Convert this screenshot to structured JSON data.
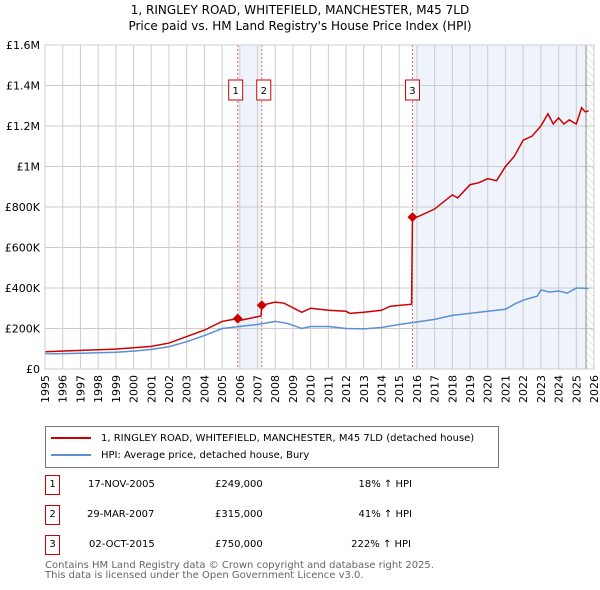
{
  "chart_data": {
    "type": "line",
    "title": "1, RINGLEY ROAD, WHITEFIELD, MANCHESTER, M45 7LD",
    "subtitle": "Price paid vs. HM Land Registry's House Price Index (HPI)",
    "xlim": [
      1995,
      2026
    ],
    "ylim": [
      0,
      1600000
    ],
    "x_ticks": [
      "1995",
      "1996",
      "1997",
      "1998",
      "1999",
      "2000",
      "2001",
      "2002",
      "2003",
      "2004",
      "2005",
      "2006",
      "2007",
      "2008",
      "2009",
      "2010",
      "2011",
      "2012",
      "2013",
      "2014",
      "2015",
      "2016",
      "2017",
      "2018",
      "2019",
      "2020",
      "2021",
      "2022",
      "2023",
      "2024",
      "2025",
      "2026"
    ],
    "y_ticks": [
      {
        "v": 0,
        "l": "£0"
      },
      {
        "v": 200000,
        "l": "£200K"
      },
      {
        "v": 400000,
        "l": "£400K"
      },
      {
        "v": 600000,
        "l": "£600K"
      },
      {
        "v": 800000,
        "l": "£800K"
      },
      {
        "v": 1000000,
        "l": "£1M"
      },
      {
        "v": 1200000,
        "l": "£1.2M"
      },
      {
        "v": 1400000,
        "l": "£1.4M"
      },
      {
        "v": 1600000,
        "l": "£1.6M"
      }
    ],
    "grid": true,
    "series": [
      {
        "name": "1, RINGLEY ROAD, WHITEFIELD, MANCHESTER, M45 7LD (detached house)",
        "color": "#cc0000",
        "x": [
          1995,
          1997,
          1999,
          2000,
          2001,
          2002,
          2003,
          2004,
          2005,
          2005.88,
          2006,
          2007.2,
          2007.24,
          2008,
          2008.5,
          2009.5,
          2010,
          2011,
          2012,
          2012.2,
          2013,
          2014,
          2014.5,
          2015.7,
          2015.75,
          2016,
          2017,
          2018,
          2018.3,
          2019,
          2019.5,
          2020,
          2020.5,
          2021,
          2021.5,
          2022,
          2022.5,
          2023,
          2023.4,
          2023.7,
          2024,
          2024.3,
          2024.6,
          2025,
          2025.3,
          2025.5,
          2025.7
        ],
        "y": [
          85000,
          92000,
          98000,
          105000,
          112000,
          128000,
          160000,
          192000,
          235000,
          249000,
          240000,
          262000,
          315000,
          330000,
          325000,
          280000,
          300000,
          290000,
          285000,
          275000,
          280000,
          290000,
          310000,
          320000,
          750000,
          750000,
          790000,
          860000,
          845000,
          910000,
          920000,
          940000,
          930000,
          1000000,
          1050000,
          1130000,
          1150000,
          1200000,
          1260000,
          1210000,
          1240000,
          1210000,
          1230000,
          1210000,
          1290000,
          1270000,
          1275000
        ]
      },
      {
        "name": "HPI: Average price, detached house, Bury",
        "color": "#5b8fd4",
        "x": [
          1995,
          1996,
          1997,
          1998,
          1999,
          2000,
          2001,
          2002,
          2003,
          2004,
          2005,
          2006,
          2007,
          2008,
          2008.7,
          2009.5,
          2010,
          2011,
          2012,
          2013,
          2014,
          2015,
          2016,
          2017,
          2018,
          2019,
          2020,
          2021,
          2021.5,
          2022,
          2022.8,
          2023,
          2023.5,
          2024,
          2024.5,
          2025,
          2025.7
        ],
        "y": [
          75000,
          76000,
          78000,
          80000,
          83000,
          88000,
          97000,
          110000,
          135000,
          165000,
          200000,
          210000,
          220000,
          235000,
          225000,
          200000,
          210000,
          210000,
          200000,
          198000,
          205000,
          220000,
          232000,
          245000,
          265000,
          275000,
          285000,
          295000,
          320000,
          340000,
          360000,
          390000,
          380000,
          385000,
          375000,
          400000,
          398000
        ]
      }
    ],
    "sales": [
      {
        "n": "1",
        "x": 2005.88,
        "y": 249000,
        "date": "17-NOV-2005",
        "price": "£249,000",
        "hpi": "18% ↑ HPI"
      },
      {
        "n": "2",
        "x": 2007.24,
        "y": 315000,
        "date": "29-MAR-2007",
        "price": "£315,000",
        "hpi": "41% ↑ HPI"
      },
      {
        "n": "3",
        "x": 2015.75,
        "y": 750000,
        "date": "02-OCT-2015",
        "price": "£750,000",
        "hpi": "222% ↑ HPI"
      }
    ]
  },
  "footer": {
    "line1": "Contains HM Land Registry data © Crown copyright and database right 2025.",
    "line2": "This data is licensed under the Open Government Licence v3.0."
  }
}
